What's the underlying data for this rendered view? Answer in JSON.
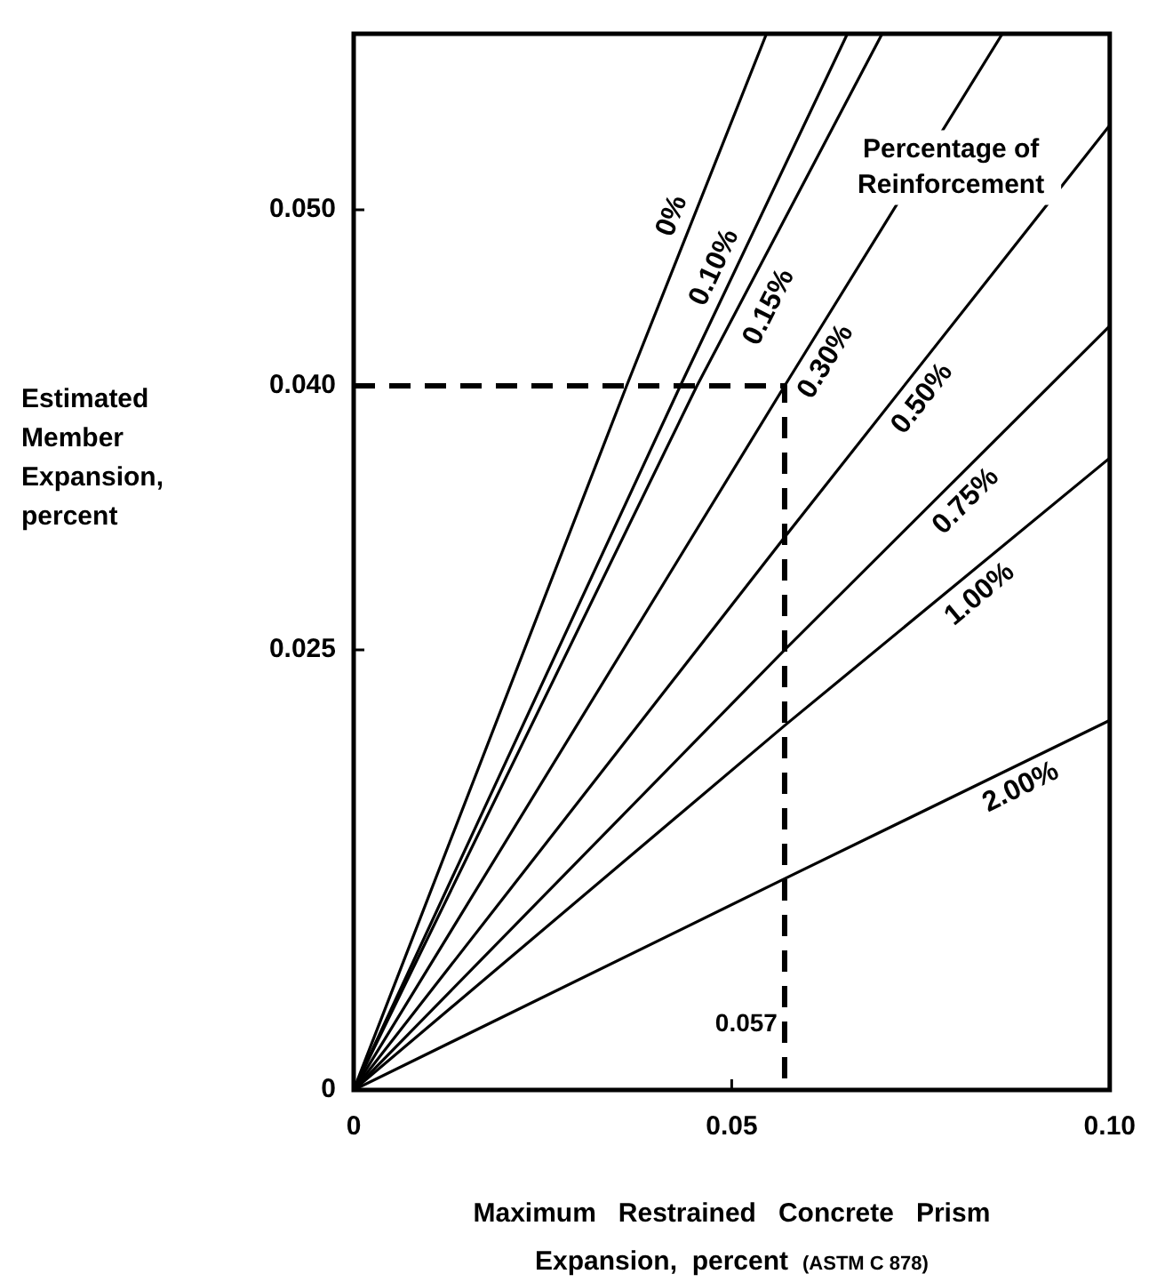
{
  "chart_data": {
    "type": "line",
    "xlabel": "Maximum Restrained Concrete Prism Expansion, percent",
    "ylabel": "Estimated Member Expansion, percent",
    "legend_title": "Percentage of Reinforcement",
    "legend": false,
    "grid": false,
    "marker": "none",
    "line_style": "solid",
    "xlim": [
      0,
      0.1
    ],
    "ylim": [
      0,
      0.06
    ],
    "xticks": [
      0,
      0.05,
      {
        "value": 0.1,
        "label": "0.10"
      }
    ],
    "yticks": [
      0,
      0.025,
      {
        "value": 0.04,
        "label": "0.040"
      },
      {
        "value": 0.05,
        "label": "0.050"
      }
    ],
    "series": [
      {
        "name": "0%",
        "color": "#000000",
        "x": [
          0,
          0.0361,
          0.0546
        ],
        "values": [
          0,
          0.04,
          0.06
        ]
      },
      {
        "name": "0.10%",
        "color": "#000000",
        "x": [
          0,
          0.0432,
          0.0653
        ],
        "values": [
          0,
          0.04,
          0.06
        ]
      },
      {
        "name": "0.15%",
        "color": "#000000",
        "x": [
          0,
          0.0454,
          0.0699
        ],
        "values": [
          0,
          0.04,
          0.06
        ]
      },
      {
        "name": "0.30%",
        "color": "#000000",
        "x": [
          0,
          0.057,
          0.0858
        ],
        "values": [
          0,
          0.04,
          0.06
        ]
      },
      {
        "name": "0.50%",
        "color": "#000000",
        "x": [
          0,
          0.057,
          0.1
        ],
        "values": [
          0,
          0.0314,
          0.0548
        ]
      },
      {
        "name": "0.75%",
        "color": "#000000",
        "x": [
          0,
          0.057,
          0.1
        ],
        "values": [
          0,
          0.025,
          0.0434
        ]
      },
      {
        "name": "1.00%",
        "color": "#000000",
        "x": [
          0,
          0.057,
          0.1
        ],
        "values": [
          0,
          0.0207,
          0.0359
        ]
      },
      {
        "name": "2.00%",
        "color": "#000000",
        "x": [
          0,
          0.057,
          0.1
        ],
        "values": [
          0,
          0.012,
          0.021
        ]
      },
      {
        "color": "#000000",
        "line_style": "dashed",
        "x": [
          0,
          0.057,
          0.057
        ],
        "values": [
          0.04,
          0.04,
          0
        ]
      }
    ],
    "annotations": [
      {
        "text": "0.057",
        "x": 0.057,
        "y": 0.003
      },
      "(ASTM C 878)"
    ]
  }
}
